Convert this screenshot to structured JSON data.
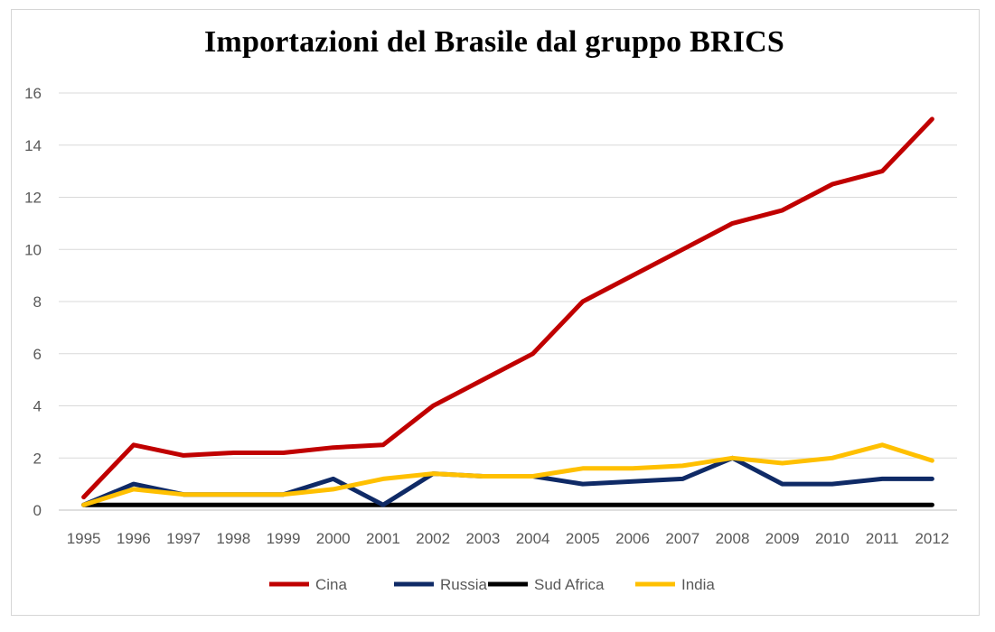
{
  "chart_data": {
    "type": "line",
    "title": "Importazioni del Brasile dal gruppo BRICS",
    "xlabel": "",
    "ylabel": "",
    "ylim": [
      0,
      16
    ],
    "yticks": [
      0,
      2,
      4,
      6,
      8,
      10,
      12,
      14,
      16
    ],
    "grid": "horizontal",
    "legend_position": "bottom",
    "categories": [
      "1995",
      "1996",
      "1997",
      "1998",
      "1999",
      "2000",
      "2001",
      "2002",
      "2003",
      "2004",
      "2005",
      "2006",
      "2007",
      "2008",
      "2009",
      "2010",
      "2011",
      "2012"
    ],
    "series": [
      {
        "name": "Cina",
        "color": "#c00000",
        "values": [
          0.5,
          2.5,
          2.1,
          2.2,
          2.2,
          2.4,
          2.5,
          4.0,
          5.0,
          6.0,
          8.0,
          9.0,
          10.0,
          11.0,
          11.5,
          12.5,
          13.0,
          15.0
        ]
      },
      {
        "name": "Russia",
        "color": "#0f2a66",
        "values": [
          0.2,
          1.0,
          0.6,
          0.6,
          0.6,
          1.2,
          0.2,
          1.4,
          1.3,
          1.3,
          1.0,
          1.1,
          1.2,
          2.0,
          1.0,
          1.0,
          1.2,
          1.2
        ]
      },
      {
        "name": "Sud Africa",
        "color": "#000000",
        "values": [
          0.2,
          0.2,
          0.2,
          0.2,
          0.2,
          0.2,
          0.2,
          0.2,
          0.2,
          0.2,
          0.2,
          0.2,
          0.2,
          0.2,
          0.2,
          0.2,
          0.2,
          0.2
        ]
      },
      {
        "name": "India",
        "color": "#ffc000",
        "values": [
          0.2,
          0.8,
          0.6,
          0.6,
          0.6,
          0.8,
          1.2,
          1.4,
          1.3,
          1.3,
          1.6,
          1.6,
          1.7,
          2.0,
          1.8,
          2.0,
          2.5,
          1.9
        ]
      }
    ]
  }
}
